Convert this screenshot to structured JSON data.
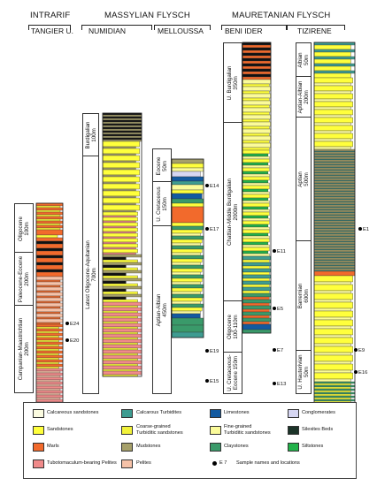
{
  "colors": {
    "calcareous_sandstones": "#fbfbe0",
    "sandstones": "#ffff3c",
    "tubotomaculum_pelites": "#f08a8a",
    "calcareous_turbidites": "#3e9c91",
    "coarse_turbiditic_sandstones": "#f2f23a",
    "mudstones": "#a6a06a",
    "limestones": "#135aa0",
    "fine_turbiditic_sandstones": "#fbfb9a",
    "claystones": "#3a9a6a",
    "conglomerates": "#d6d6f2",
    "silexites": "#1b3328",
    "siltstones": "#22b24a",
    "marls": "#f26a2c",
    "pelites": "#f6c2a8",
    "black": "#111111"
  },
  "headers": {
    "intrarif": "INTRARIF",
    "massylian": "MASSYLIAN FLYSCH",
    "mauretanian": "MAURETANIAN FLYSCH",
    "tangier": "TANGIER U.",
    "numidian": "NUMIDIAN",
    "melloussa": "MELLOUSSA",
    "beni_ider": "BENI IDER",
    "tizirene": "TIZIRENE"
  },
  "ages": {
    "tangier_oligocene": "Oligocene\n100m",
    "tangier_paleocene": "Paleocene-Eocene\n200m",
    "tangier_campanian": "Campanian-Maastrichtian\n200m",
    "numidian_burdigalian": "Burdigalian\n100m",
    "numidian_oligo": "Latest Oligocene-Aquitanian\n700m",
    "melloussa_eocene": "Eocene\n50m",
    "melloussa_ucret": "U. Cretaceous\n150m",
    "melloussa_aptian": "Aptian-Albian\n450m",
    "beni_burdigalian": "U. Burdigalian\n350m",
    "beni_chattian": "Chattian-Middle Burdigalian\n2000m",
    "beni_oligocene": "Oligocene\n100-110m",
    "beni_ucret": "U. Cretaceous-\nEocene 150m",
    "tiz_albian": "Albian\n50m",
    "tiz_aptianalbian": "Aptian-Albian\n200m",
    "tiz_aptian": "Aptian\n500m",
    "tiz_barremian": "Barremian\n600m",
    "tiz_hauterivian": "U. Hauterivian\n50m"
  },
  "samples": {
    "e24": "E24",
    "e20": "E20",
    "e14": "E14",
    "e17": "E17",
    "e19": "E19",
    "e15": "E15",
    "e11": "E11",
    "e5": "E5",
    "e7": "E7",
    "e13": "E13",
    "e1": "E1",
    "e9": "E9",
    "e16": "E16"
  },
  "legend": {
    "calcareous_sandstones": "Calcareous sandstones",
    "sandstones": "Sandstones",
    "marls": "Marls",
    "tubotomaculum": "Tubotomaculum-bearing Pelites",
    "calcareous_turbidites": "Calcarous Turbidites",
    "coarse_turbidites": "Coarse-grained\nTurbiditic sandstones",
    "mudstones": "Mudstones",
    "pelites": "Pelites",
    "limestones": "Limestones",
    "fine_turbidites": "Fine-grained\nTurbiditic sandstones",
    "claystones": "Claystones",
    "sample_key": "E 7",
    "sample_desc": "Sample names and locations",
    "conglomerates": "Conglomerates",
    "silexites": "Silexites Beds",
    "siltstones": "Siltstones"
  }
}
